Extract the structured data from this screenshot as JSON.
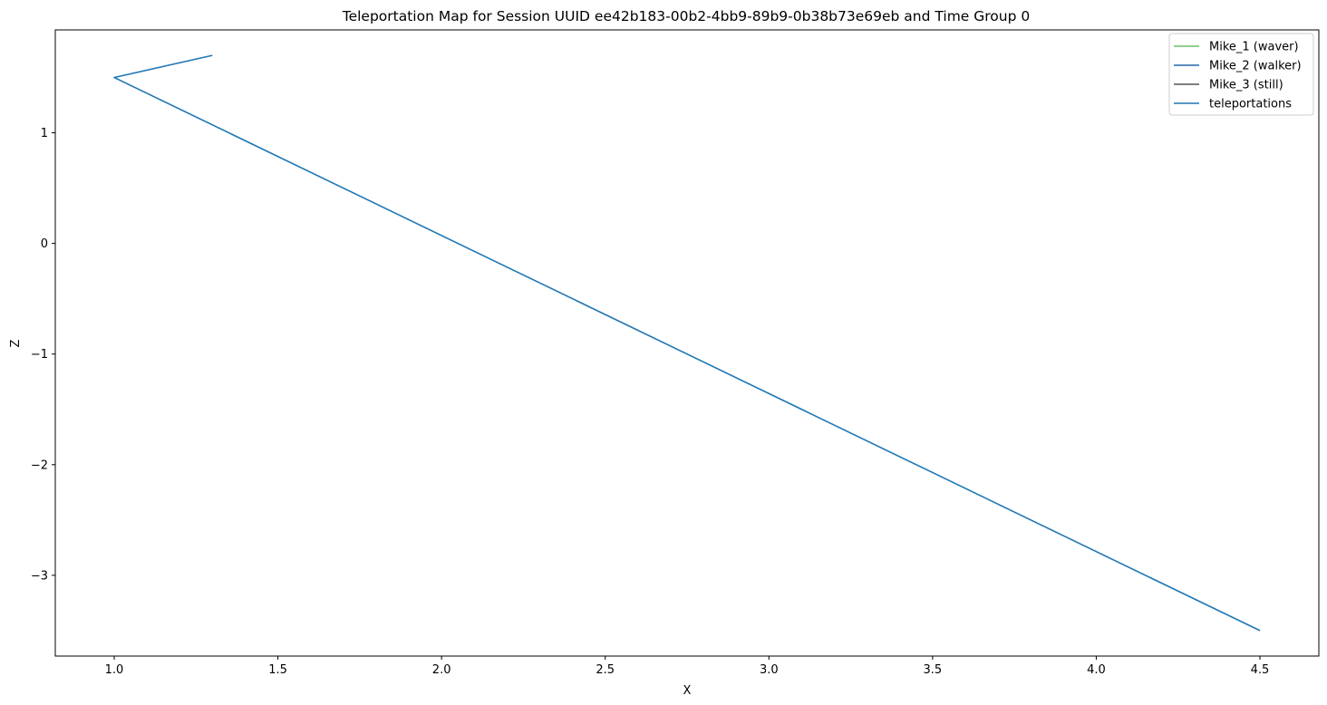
{
  "chart_data": {
    "type": "line",
    "title": "Teleportation Map for Session UUID ee42b183-00b2-4bb9-89b9-0b38b73e69eb and Time Group 0",
    "xlabel": "X",
    "ylabel": "Z",
    "xlim": [
      0.82,
      4.68
    ],
    "ylim": [
      -3.73,
      1.93
    ],
    "xticks": [
      1.0,
      1.5,
      2.0,
      2.5,
      3.0,
      3.5,
      4.0,
      4.5
    ],
    "xtick_labels": [
      "1.0",
      "1.5",
      "2.0",
      "2.5",
      "3.0",
      "3.5",
      "4.0",
      "4.5"
    ],
    "yticks": [
      1,
      0,
      -1,
      -2,
      -3
    ],
    "ytick_labels": [
      "1",
      "0",
      "−1",
      "−2",
      "−3"
    ],
    "grid": false,
    "legend_position": "top-right",
    "series": [
      {
        "name": "Mike_1 (waver)",
        "color": "#6abf69",
        "x": [],
        "y": []
      },
      {
        "name": "Mike_2 (walker)",
        "color": "#2166ac",
        "x": [],
        "y": []
      },
      {
        "name": "Mike_3 (still)",
        "color": "#555555",
        "x": [],
        "y": []
      },
      {
        "name": "teleportations",
        "color": "#1f77b4",
        "x": [
          1.3,
          1.0,
          4.5
        ],
        "y": [
          1.7,
          1.5,
          -3.5
        ]
      }
    ]
  }
}
